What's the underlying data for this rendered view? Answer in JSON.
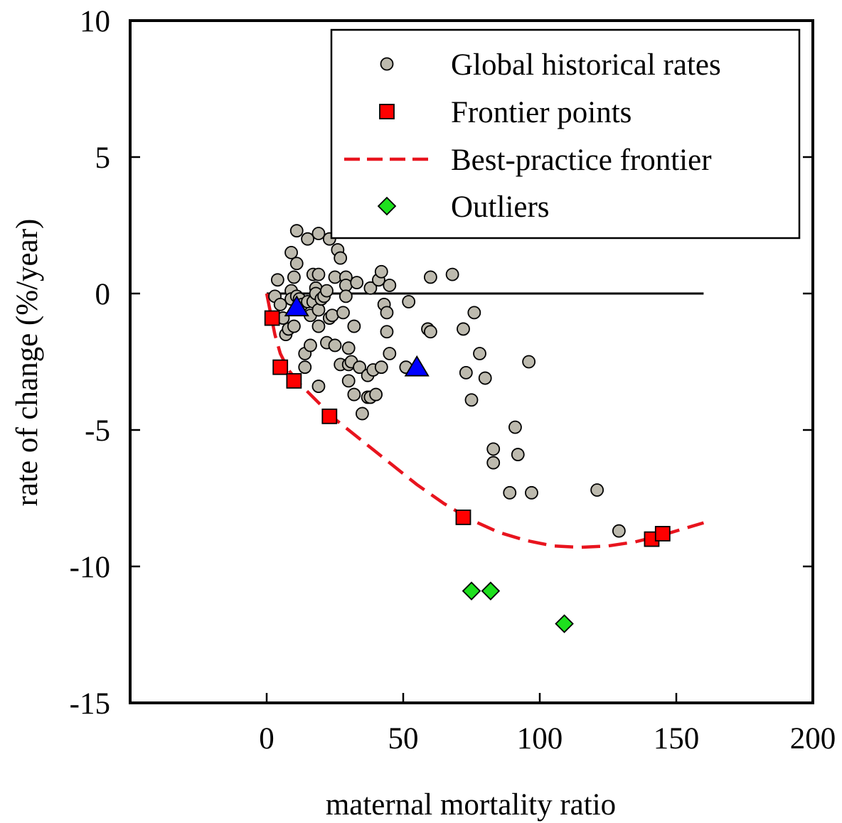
{
  "chart_data": {
    "type": "scatter",
    "xlabel": "maternal mortality ratio",
    "ylabel": "rate of change (%/year)",
    "xlim": [
      -50,
      200
    ],
    "ylim": [
      -15,
      10
    ],
    "xticks": [
      0,
      50,
      100,
      150,
      200
    ],
    "yticks": [
      10,
      5,
      0,
      -5,
      -10,
      -15
    ],
    "grid": false,
    "legend_position": "top-right",
    "legend": [
      {
        "label": "Global historical rates",
        "marker": "circle"
      },
      {
        "label": "Frontier points",
        "marker": "square"
      },
      {
        "label": "Best-practice frontier",
        "marker": "dashed-line"
      },
      {
        "label": "Outliers",
        "marker": "diamond"
      }
    ],
    "colors": {
      "historical": "#bdbaae",
      "frontier_points": "#ff0000",
      "frontier_curve": "#e8141e",
      "outliers": "#1ee01e",
      "triangles": "#0000ff"
    },
    "series": [
      {
        "name": "Global historical rates",
        "marker": "circle",
        "points": [
          [
            3,
            -0.1
          ],
          [
            4,
            0.5
          ],
          [
            5,
            -0.4
          ],
          [
            6,
            -0.9
          ],
          [
            7,
            -1.5
          ],
          [
            8,
            -1.3
          ],
          [
            9,
            0.1
          ],
          [
            9,
            -0.2
          ],
          [
            10,
            0.6
          ],
          [
            9,
            1.5
          ],
          [
            10,
            -1.2
          ],
          [
            11,
            1.1
          ],
          [
            11,
            -0.1
          ],
          [
            12,
            -0.2
          ],
          [
            13,
            -0.4
          ],
          [
            14,
            -2.7
          ],
          [
            14,
            -2.2
          ],
          [
            15,
            -0.3
          ],
          [
            16,
            -0.8
          ],
          [
            16,
            -1.9
          ],
          [
            11,
            2.3
          ],
          [
            15,
            2.0
          ],
          [
            17,
            0.7
          ],
          [
            17,
            -0.3
          ],
          [
            18,
            0.2
          ],
          [
            18,
            0.0
          ],
          [
            19,
            -0.6
          ],
          [
            19,
            -1.2
          ],
          [
            19,
            -3.4
          ],
          [
            19,
            0.7
          ],
          [
            19,
            2.2
          ],
          [
            20,
            -0.2
          ],
          [
            21,
            -0.1
          ],
          [
            22,
            0.1
          ],
          [
            22,
            -1.8
          ],
          [
            23,
            2.0
          ],
          [
            23,
            -0.9
          ],
          [
            24,
            -0.8
          ],
          [
            25,
            0.6
          ],
          [
            25,
            -1.9
          ],
          [
            26,
            1.6
          ],
          [
            27,
            1.3
          ],
          [
            27,
            -2.6
          ],
          [
            28,
            -0.7
          ],
          [
            29,
            0.6
          ],
          [
            29,
            0.3
          ],
          [
            29,
            -0.1
          ],
          [
            30,
            -2.0
          ],
          [
            30,
            -2.6
          ],
          [
            30,
            -3.2
          ],
          [
            31,
            -2.5
          ],
          [
            32,
            -3.7
          ],
          [
            32,
            -1.2
          ],
          [
            33,
            0.4
          ],
          [
            34,
            -2.7
          ],
          [
            35,
            -4.4
          ],
          [
            37,
            -3.0
          ],
          [
            37,
            -3.8
          ],
          [
            38,
            -3.8
          ],
          [
            38,
            0.2
          ],
          [
            39,
            -2.8
          ],
          [
            40,
            -3.7
          ],
          [
            41,
            0.5
          ],
          [
            42,
            0.8
          ],
          [
            42,
            -2.7
          ],
          [
            43,
            -0.4
          ],
          [
            44,
            -0.7
          ],
          [
            44,
            -1.4
          ],
          [
            45,
            0.3
          ],
          [
            45,
            -2.2
          ],
          [
            52,
            -0.3
          ],
          [
            51,
            -2.7
          ],
          [
            59,
            -1.3
          ],
          [
            60,
            0.6
          ],
          [
            60,
            -1.4
          ],
          [
            68,
            0.7
          ],
          [
            72,
            -1.3
          ],
          [
            73,
            -2.9
          ],
          [
            75,
            -3.9
          ],
          [
            76,
            -0.7
          ],
          [
            78,
            -2.2
          ],
          [
            80,
            -3.1
          ],
          [
            83,
            -5.7
          ],
          [
            83,
            -6.2
          ],
          [
            89,
            -7.3
          ],
          [
            91,
            -4.9
          ],
          [
            92,
            -5.9
          ],
          [
            96,
            -2.5
          ],
          [
            97,
            -7.3
          ],
          [
            121,
            -7.2
          ],
          [
            129,
            -8.7
          ]
        ]
      },
      {
        "name": "Frontier points",
        "marker": "square",
        "points": [
          [
            2,
            -0.9
          ],
          [
            5,
            -2.7
          ],
          [
            10,
            -3.2
          ],
          [
            23,
            -4.5
          ],
          [
            72,
            -8.2
          ],
          [
            141,
            -9.0
          ],
          [
            145,
            -8.8
          ]
        ]
      },
      {
        "name": "Outliers",
        "marker": "diamond",
        "points": [
          [
            75,
            -10.9
          ],
          [
            82,
            -10.9
          ],
          [
            109,
            -12.1
          ]
        ]
      },
      {
        "marker": "triangle",
        "points": [
          [
            11,
            -0.5
          ],
          [
            55,
            -2.7
          ]
        ]
      },
      {
        "name": "Best-practice frontier",
        "marker": "dashed-line",
        "curve": [
          [
            0,
            0.0
          ],
          [
            1,
            -0.5
          ],
          [
            2,
            -1.0
          ],
          [
            3,
            -1.5
          ],
          [
            5,
            -2.2
          ],
          [
            8,
            -2.8
          ],
          [
            12,
            -3.3
          ],
          [
            18,
            -3.9
          ],
          [
            25,
            -4.6
          ],
          [
            35,
            -5.4
          ],
          [
            45,
            -6.2
          ],
          [
            55,
            -7.0
          ],
          [
            65,
            -7.7
          ],
          [
            75,
            -8.3
          ],
          [
            85,
            -8.75
          ],
          [
            95,
            -9.05
          ],
          [
            105,
            -9.25
          ],
          [
            115,
            -9.3
          ],
          [
            125,
            -9.25
          ],
          [
            135,
            -9.1
          ],
          [
            145,
            -8.85
          ],
          [
            155,
            -8.55
          ],
          [
            160,
            -8.4
          ]
        ]
      },
      {
        "name": "zero line",
        "marker": "line",
        "points": [
          [
            0,
            0
          ],
          [
            160,
            0
          ]
        ]
      }
    ]
  }
}
